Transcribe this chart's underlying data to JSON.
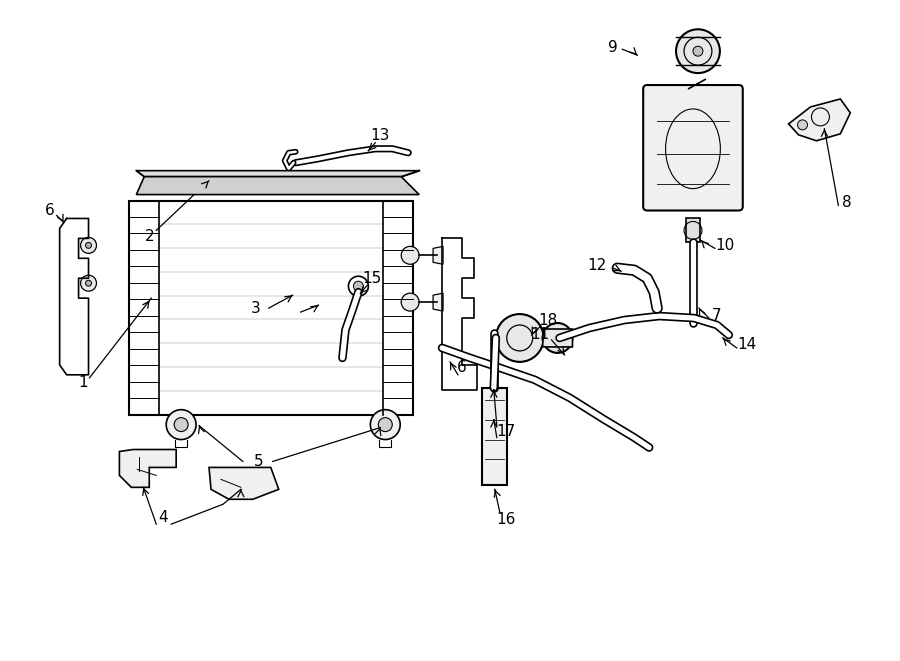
{
  "bg_color": "#ffffff",
  "lc": "#000000",
  "fs": 11,
  "fig_width": 9.0,
  "fig_height": 6.61,
  "dpi": 100
}
